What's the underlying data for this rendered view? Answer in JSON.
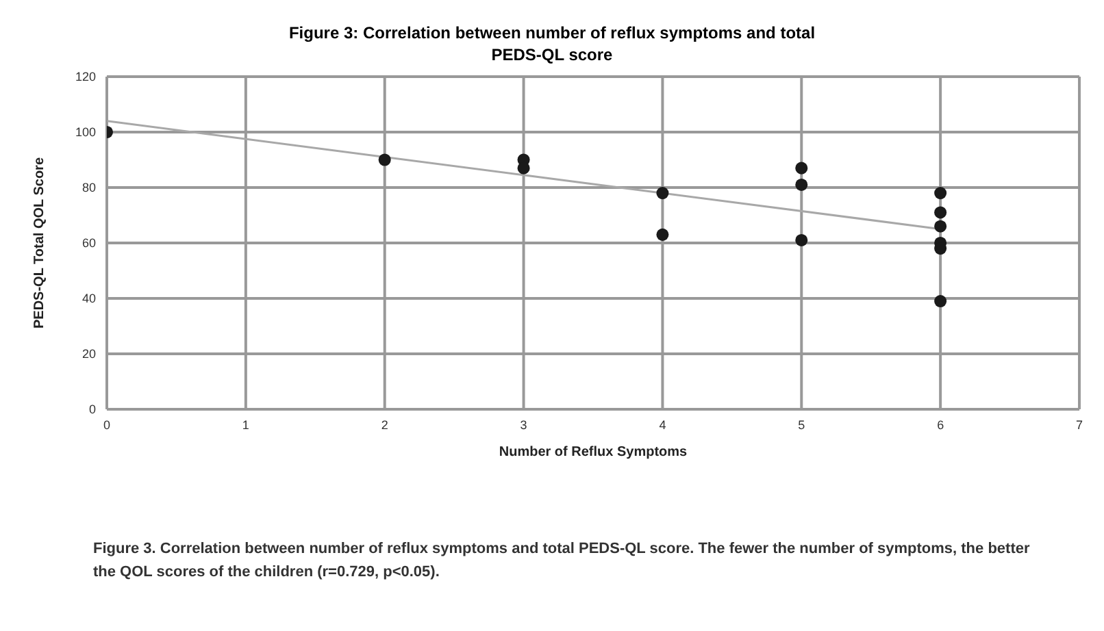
{
  "chart_data": {
    "type": "scatter",
    "title": "Figure 3: Correlation between number of reflux symptoms and total PEDS-QL score",
    "xlabel": "Number of Reflux Symptoms",
    "ylabel": "PEDS-QL Total QOL Score",
    "series": [
      {
        "color": "#1a1a1a",
        "marker": "circle",
        "x": [
          0,
          2,
          3,
          3,
          4,
          4,
          5,
          5,
          5,
          6,
          6,
          6,
          6,
          6,
          6
        ],
        "values": [
          100,
          90,
          90,
          87,
          78,
          63,
          87,
          81,
          61,
          78,
          71,
          66,
          60,
          58,
          39
        ]
      },
      {
        "type": "line",
        "color": "#a8a8a8",
        "marker": "none",
        "x": [
          0,
          6
        ],
        "values": [
          104,
          65
        ]
      }
    ],
    "xlim": [
      0,
      7
    ],
    "xticks": [
      0,
      1,
      2,
      3,
      4,
      5,
      6,
      7
    ],
    "ylim": [
      0,
      120
    ],
    "yticks": [
      0,
      20,
      40,
      60,
      80,
      100,
      120
    ],
    "grid": true,
    "annotations": [
      "Figure 3. Correlation between number of reflux symptoms and total PEDS-QL score. The fewer the number of symptoms, the better the QOL scores of the children (r=0.729, p<0.05)."
    ]
  }
}
